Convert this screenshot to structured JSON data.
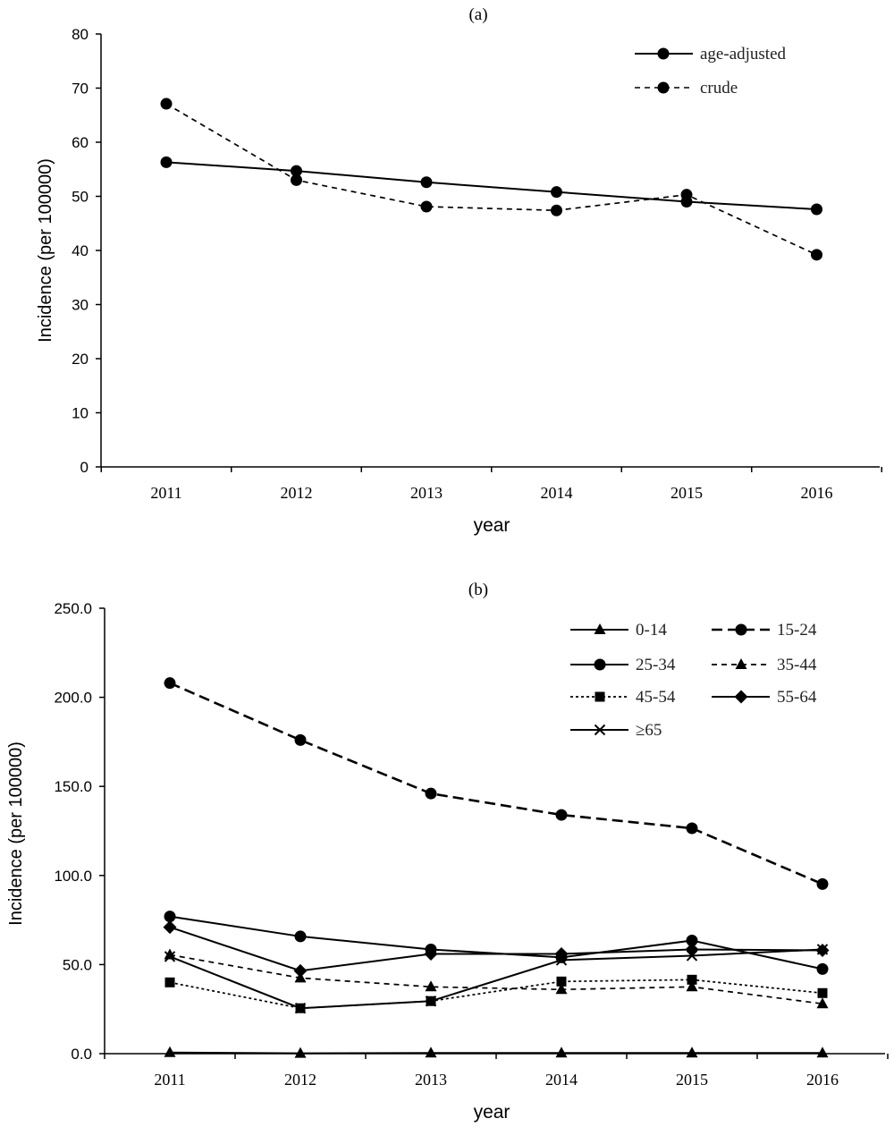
{
  "chart_data": [
    {
      "type": "line",
      "title": "(a)",
      "xlabel": "year",
      "ylabel": "Incidence (per 100000)",
      "categories": [
        "2011",
        "2012",
        "2013",
        "2014",
        "2015",
        "2016"
      ],
      "ylim": [
        0,
        80
      ],
      "yticks": [
        0,
        10,
        20,
        30,
        40,
        50,
        60,
        70,
        80
      ],
      "ytick_labels": [
        "0",
        "10",
        "20",
        "30",
        "40",
        "50",
        "60",
        "70",
        "80"
      ],
      "grid": false,
      "legend_position": "top-right",
      "series": [
        {
          "name": "age-adjusted",
          "dash": "solid",
          "marker": "circle",
          "values": [
            56.3,
            54.7,
            52.6,
            50.8,
            49.0,
            47.6
          ]
        },
        {
          "name": "crude",
          "dash": "dashed",
          "marker": "circle",
          "values": [
            67.1,
            53.0,
            48.1,
            47.4,
            50.3,
            39.2
          ]
        }
      ]
    },
    {
      "type": "line",
      "title": "(b)",
      "xlabel": "year",
      "ylabel": "Incidence (per 100000)",
      "categories": [
        "2011",
        "2012",
        "2013",
        "2014",
        "2015",
        "2016"
      ],
      "ylim": [
        0,
        250
      ],
      "yticks": [
        0,
        50,
        100,
        150,
        200,
        250
      ],
      "ytick_labels": [
        "0.0",
        "50.0",
        "100.0",
        "150.0",
        "200.0",
        "250.0"
      ],
      "grid": false,
      "legend_position": "top-right",
      "series": [
        {
          "name": "0-14",
          "dash": "solid",
          "marker": "triangle",
          "values": [
            0.6,
            0.2,
            0.4,
            0.4,
            0.4,
            0.4
          ]
        },
        {
          "name": "15-24",
          "dash": "long",
          "marker": "circle",
          "values": [
            208.0,
            176.0,
            146.0,
            134.0,
            126.5,
            95.2
          ]
        },
        {
          "name": "25-34",
          "dash": "solid",
          "marker": "circle",
          "values": [
            77.0,
            65.8,
            58.5,
            54.0,
            63.5,
            47.5
          ]
        },
        {
          "name": "35-44",
          "dash": "dashed",
          "marker": "triangle",
          "values": [
            55.5,
            42.5,
            37.5,
            36.0,
            37.5,
            28.0
          ]
        },
        {
          "name": "45-54",
          "dash": "dotted",
          "marker": "square",
          "values": [
            40.0,
            25.5,
            29.5,
            40.5,
            41.5,
            34.0
          ]
        },
        {
          "name": "55-64",
          "dash": "solid",
          "marker": "diamond",
          "values": [
            71.0,
            46.5,
            56.0,
            56.0,
            58.5,
            58.0
          ]
        },
        {
          "name": "≥65",
          "dash": "solid",
          "marker": "cross",
          "values": [
            54.5,
            25.5,
            29.5,
            52.5,
            55.0,
            58.5
          ]
        }
      ]
    }
  ]
}
